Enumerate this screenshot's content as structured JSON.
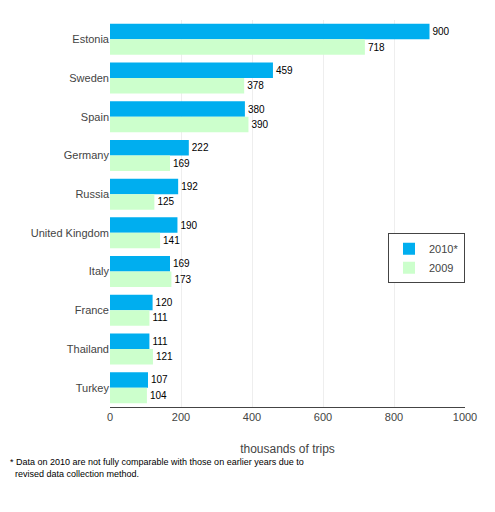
{
  "chart_data": {
    "type": "bar",
    "orientation": "horizontal",
    "categories": [
      "Estonia",
      "Sweden",
      "Spain",
      "Germany",
      "Russia",
      "United Kingdom",
      "Italy",
      "France",
      "Thailand",
      "Turkey"
    ],
    "series": [
      {
        "name": "2010*",
        "color": "#00AEEF",
        "values": [
          900,
          459,
          380,
          222,
          192,
          190,
          169,
          120,
          111,
          107
        ]
      },
      {
        "name": "2009",
        "color": "#CCFFCC",
        "values": [
          718,
          378,
          390,
          169,
          125,
          141,
          173,
          111,
          121,
          104
        ]
      }
    ],
    "xlabel": "thousands of trips",
    "xlim": [
      0,
      1000
    ],
    "xticks": [
      0,
      200,
      400,
      600,
      800,
      1000
    ],
    "grid": true,
    "legend": "lower right",
    "data_labels": true,
    "annotations": [
      "* Data on 2010 are not fully comparable with those on earlier years due to\n  revised data collection method."
    ]
  }
}
